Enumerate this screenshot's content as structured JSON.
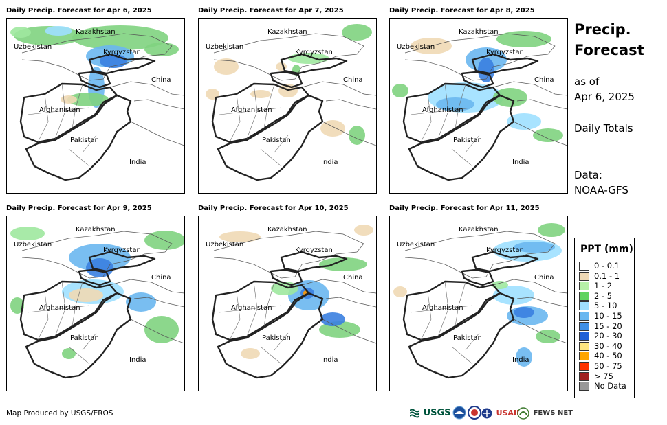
{
  "panels": [
    {
      "title": "Daily Precip. Forecast for Apr 6, 2025",
      "blobs": [
        {
          "x": 60,
          "y": 25,
          "rx": 50,
          "ry": 14,
          "c": "#7fd37f"
        },
        {
          "x": 75,
          "y": 18,
          "rx": 20,
          "ry": 7,
          "c": "#9fe0ff"
        },
        {
          "x": 165,
          "y": 28,
          "rx": 70,
          "ry": 18,
          "c": "#7fd37f"
        },
        {
          "x": 150,
          "y": 55,
          "rx": 35,
          "ry": 16,
          "c": "#6ab7f0"
        },
        {
          "x": 155,
          "y": 62,
          "rx": 20,
          "ry": 10,
          "c": "#3a7fe0"
        },
        {
          "x": 130,
          "y": 100,
          "rx": 12,
          "ry": 30,
          "c": "#6ab7f0"
        },
        {
          "x": 118,
          "y": 118,
          "rx": 30,
          "ry": 10,
          "c": "#7fd37f"
        },
        {
          "x": 225,
          "y": 45,
          "rx": 25,
          "ry": 10,
          "c": "#7fd37f"
        },
        {
          "x": 20,
          "y": 20,
          "rx": 15,
          "ry": 8,
          "c": "#9ee89e"
        },
        {
          "x": 90,
          "y": 118,
          "rx": 12,
          "ry": 6,
          "c": "#f0d9b5"
        }
      ]
    },
    {
      "title": "Daily Precip. Forecast for Apr 7, 2025",
      "blobs": [
        {
          "x": 40,
          "y": 70,
          "rx": 18,
          "ry": 12,
          "c": "#f0d9b5"
        },
        {
          "x": 20,
          "y": 110,
          "rx": 10,
          "ry": 8,
          "c": "#f0d9b5"
        },
        {
          "x": 120,
          "y": 70,
          "rx": 8,
          "ry": 6,
          "c": "#f0d9b5"
        },
        {
          "x": 130,
          "y": 105,
          "rx": 14,
          "ry": 10,
          "c": "#f0d9b5"
        },
        {
          "x": 160,
          "y": 58,
          "rx": 30,
          "ry": 8,
          "c": "#9ee89e"
        },
        {
          "x": 230,
          "y": 20,
          "rx": 22,
          "ry": 12,
          "c": "#7fd37f"
        },
        {
          "x": 90,
          "y": 110,
          "rx": 15,
          "ry": 6,
          "c": "#f0d9b5"
        },
        {
          "x": 195,
          "y": 160,
          "rx": 18,
          "ry": 12,
          "c": "#f0d9b5"
        },
        {
          "x": 230,
          "y": 170,
          "rx": 12,
          "ry": 14,
          "c": "#7fd37f"
        },
        {
          "x": 142,
          "y": 75,
          "rx": 6,
          "ry": 8,
          "c": "#7fd37f"
        }
      ]
    },
    {
      "title": "Daily Precip. Forecast for Apr 8, 2025",
      "blobs": [
        {
          "x": 140,
          "y": 60,
          "rx": 30,
          "ry": 18,
          "c": "#6ab7f0"
        },
        {
          "x": 140,
          "y": 75,
          "rx": 12,
          "ry": 18,
          "c": "#3a7fe0"
        },
        {
          "x": 110,
          "y": 115,
          "rx": 55,
          "ry": 22,
          "c": "#9fe0ff"
        },
        {
          "x": 95,
          "y": 125,
          "rx": 28,
          "ry": 10,
          "c": "#6ab7f0"
        },
        {
          "x": 175,
          "y": 115,
          "rx": 25,
          "ry": 14,
          "c": "#7fd37f"
        },
        {
          "x": 195,
          "y": 150,
          "rx": 25,
          "ry": 12,
          "c": "#9fe0ff"
        },
        {
          "x": 230,
          "y": 170,
          "rx": 22,
          "ry": 10,
          "c": "#7fd37f"
        },
        {
          "x": 60,
          "y": 40,
          "rx": 30,
          "ry": 12,
          "c": "#f0d9b5"
        },
        {
          "x": 195,
          "y": 30,
          "rx": 40,
          "ry": 12,
          "c": "#7fd37f"
        },
        {
          "x": 15,
          "y": 105,
          "rx": 12,
          "ry": 10,
          "c": "#7fd37f"
        }
      ]
    },
    {
      "title": "Daily Precip. Forecast for Apr 9, 2025",
      "blobs": [
        {
          "x": 135,
          "y": 60,
          "rx": 45,
          "ry": 20,
          "c": "#6ab7f0"
        },
        {
          "x": 135,
          "y": 75,
          "rx": 20,
          "ry": 14,
          "c": "#3a7fe0"
        },
        {
          "x": 125,
          "y": 110,
          "rx": 45,
          "ry": 18,
          "c": "#9fe0ff"
        },
        {
          "x": 115,
          "y": 115,
          "rx": 25,
          "ry": 10,
          "c": "#f0d9b5"
        },
        {
          "x": 195,
          "y": 125,
          "rx": 22,
          "ry": 14,
          "c": "#6ab7f0"
        },
        {
          "x": 225,
          "y": 165,
          "rx": 25,
          "ry": 20,
          "c": "#7fd37f"
        },
        {
          "x": 230,
          "y": 35,
          "rx": 30,
          "ry": 14,
          "c": "#7fd37f"
        },
        {
          "x": 30,
          "y": 25,
          "rx": 25,
          "ry": 10,
          "c": "#9ee89e"
        },
        {
          "x": 90,
          "y": 200,
          "rx": 10,
          "ry": 8,
          "c": "#7fd37f"
        },
        {
          "x": 15,
          "y": 130,
          "rx": 10,
          "ry": 12,
          "c": "#7fd37f"
        }
      ]
    },
    {
      "title": "Daily Precip. Forecast for Apr 10, 2025",
      "blobs": [
        {
          "x": 160,
          "y": 115,
          "rx": 30,
          "ry": 22,
          "c": "#6ab7f0"
        },
        {
          "x": 158,
          "y": 112,
          "rx": 10,
          "ry": 8,
          "c": "#3a7fe0"
        },
        {
          "x": 156,
          "y": 112,
          "rx": 4,
          "ry": 4,
          "c": "#ff9900"
        },
        {
          "x": 205,
          "y": 165,
          "rx": 30,
          "ry": 12,
          "c": "#7fd37f"
        },
        {
          "x": 195,
          "y": 150,
          "rx": 18,
          "ry": 10,
          "c": "#3a7fe0"
        },
        {
          "x": 210,
          "y": 70,
          "rx": 35,
          "ry": 10,
          "c": "#7fd37f"
        },
        {
          "x": 125,
          "y": 105,
          "rx": 20,
          "ry": 10,
          "c": "#9ee89e"
        },
        {
          "x": 60,
          "y": 30,
          "rx": 30,
          "ry": 8,
          "c": "#f0d9b5"
        },
        {
          "x": 240,
          "y": 20,
          "rx": 14,
          "ry": 8,
          "c": "#f0d9b5"
        },
        {
          "x": 75,
          "y": 200,
          "rx": 14,
          "ry": 8,
          "c": "#f0d9b5"
        }
      ]
    },
    {
      "title": "Daily Precip. Forecast for Apr 11, 2025",
      "blobs": [
        {
          "x": 200,
          "y": 50,
          "rx": 50,
          "ry": 16,
          "c": "#9fe0ff"
        },
        {
          "x": 210,
          "y": 45,
          "rx": 30,
          "ry": 8,
          "c": "#6ab7f0"
        },
        {
          "x": 180,
          "y": 115,
          "rx": 30,
          "ry": 14,
          "c": "#9fe0ff"
        },
        {
          "x": 200,
          "y": 145,
          "rx": 30,
          "ry": 14,
          "c": "#6ab7f0"
        },
        {
          "x": 195,
          "y": 140,
          "rx": 15,
          "ry": 8,
          "c": "#3a7fe0"
        },
        {
          "x": 230,
          "y": 175,
          "rx": 18,
          "ry": 10,
          "c": "#7fd37f"
        },
        {
          "x": 195,
          "y": 205,
          "rx": 12,
          "ry": 14,
          "c": "#6ab7f0"
        },
        {
          "x": 235,
          "y": 20,
          "rx": 20,
          "ry": 10,
          "c": "#7fd37f"
        },
        {
          "x": 15,
          "y": 110,
          "rx": 10,
          "ry": 8,
          "c": "#f0d9b5"
        },
        {
          "x": 160,
          "y": 100,
          "rx": 12,
          "ry": 6,
          "c": "#9ee89e"
        }
      ]
    }
  ],
  "map_labels": {
    "kazakhstan": "Kazakhstan",
    "uzbekistan": "Uzbekistan",
    "kyrgyzstan": "Kyrgyzstan",
    "china": "China",
    "afghanistan": "Afghanistan",
    "pakistan": "Pakistan",
    "india": "India"
  },
  "sidebar": {
    "title_line1": "Precip.",
    "title_line2": "Forecast",
    "asof_line1": "as of",
    "asof_line2": "Apr 6, 2025",
    "totals": "Daily Totals",
    "data_line1": "Data:",
    "data_line2": "NOAA-GFS"
  },
  "legend": {
    "title": "PPT (mm)",
    "items": [
      {
        "label": "0 - 0.1",
        "color": "#ffffff"
      },
      {
        "label": "0.1 - 1",
        "color": "#f0d9b5"
      },
      {
        "label": "1 - 2",
        "color": "#b6f0a8"
      },
      {
        "label": "2 - 5",
        "color": "#5fd35f"
      },
      {
        "label": "5 - 10",
        "color": "#9fe0ff"
      },
      {
        "label": "10 - 15",
        "color": "#6ab7f0"
      },
      {
        "label": "15 - 20",
        "color": "#3f8fe6"
      },
      {
        "label": "20 - 30",
        "color": "#1f5fd6"
      },
      {
        "label": "30 - 40",
        "color": "#ffe680"
      },
      {
        "label": "40 - 50",
        "color": "#ffa500"
      },
      {
        "label": "50 - 75",
        "color": "#ff3300"
      },
      {
        "label": "> 75",
        "color": "#a01e1e"
      },
      {
        "label": "No Data",
        "color": "#999999"
      }
    ]
  },
  "footer": {
    "produced_by": "Map Produced by USGS/EROS",
    "logo_usgs": "USGS",
    "logo_usaid": "USAID",
    "logo_fewsnet": "FEWS NET"
  }
}
